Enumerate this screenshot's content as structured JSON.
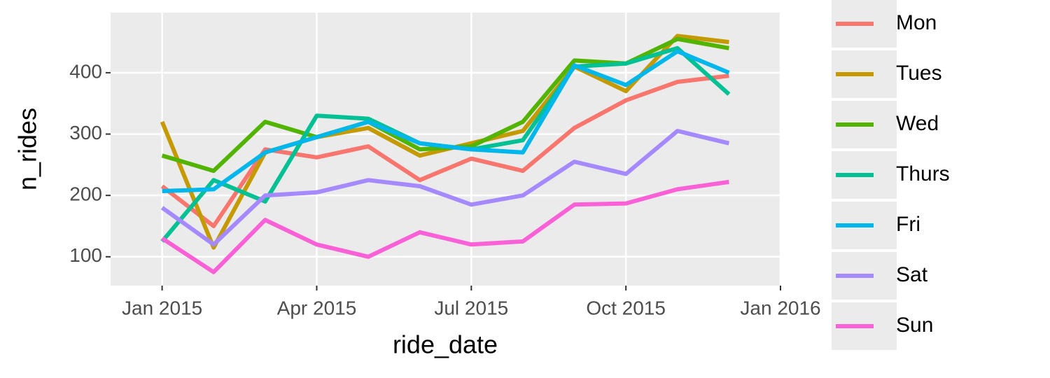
{
  "chart_data": {
    "type": "line",
    "x_label": "ride_date",
    "y_label": "n_rides",
    "x": [
      "2015-01",
      "2015-02",
      "2015-03",
      "2015-04",
      "2015-05",
      "2015-06",
      "2015-07",
      "2015-08",
      "2015-09",
      "2015-10",
      "2015-11",
      "2015-12"
    ],
    "series": [
      {
        "name": "Mon",
        "color": "#F8766D",
        "values": [
          215,
          150,
          275,
          262,
          280,
          225,
          260,
          240,
          310,
          355,
          385,
          395
        ]
      },
      {
        "name": "Tues",
        "color": "#C49A00",
        "values": [
          320,
          115,
          270,
          295,
          310,
          265,
          285,
          305,
          410,
          370,
          460,
          450
        ]
      },
      {
        "name": "Wed",
        "color": "#53B400",
        "values": [
          265,
          240,
          320,
          295,
          320,
          275,
          280,
          320,
          420,
          415,
          455,
          440
        ]
      },
      {
        "name": "Thurs",
        "color": "#00C094",
        "values": [
          125,
          225,
          190,
          330,
          325,
          285,
          275,
          290,
          410,
          415,
          440,
          365
        ]
      },
      {
        "name": "Fri",
        "color": "#00B6EB",
        "values": [
          207,
          210,
          270,
          295,
          320,
          285,
          275,
          270,
          412,
          380,
          435,
          400
        ]
      },
      {
        "name": "Sat",
        "color": "#A58AFF",
        "values": [
          180,
          120,
          200,
          205,
          225,
          215,
          185,
          200,
          255,
          235,
          305,
          285
        ]
      },
      {
        "name": "Sun",
        "color": "#FB61D7",
        "values": [
          130,
          75,
          160,
          120,
          100,
          140,
          120,
          125,
          185,
          187,
          210,
          222
        ]
      }
    ],
    "xlim": [
      "2014-12",
      "2016-01"
    ],
    "xticks": [
      {
        "value": "2015-01",
        "label": "Jan 2015"
      },
      {
        "value": "2015-04",
        "label": "Apr 2015"
      },
      {
        "value": "2015-07",
        "label": "Jul 2015"
      },
      {
        "value": "2015-10",
        "label": "Oct 2015"
      },
      {
        "value": "2016-01",
        "label": "Jan 2016"
      }
    ],
    "ylim": [
      53,
      498
    ],
    "yticks": [
      100,
      200,
      300,
      400
    ],
    "grid": true,
    "legend": "right"
  }
}
